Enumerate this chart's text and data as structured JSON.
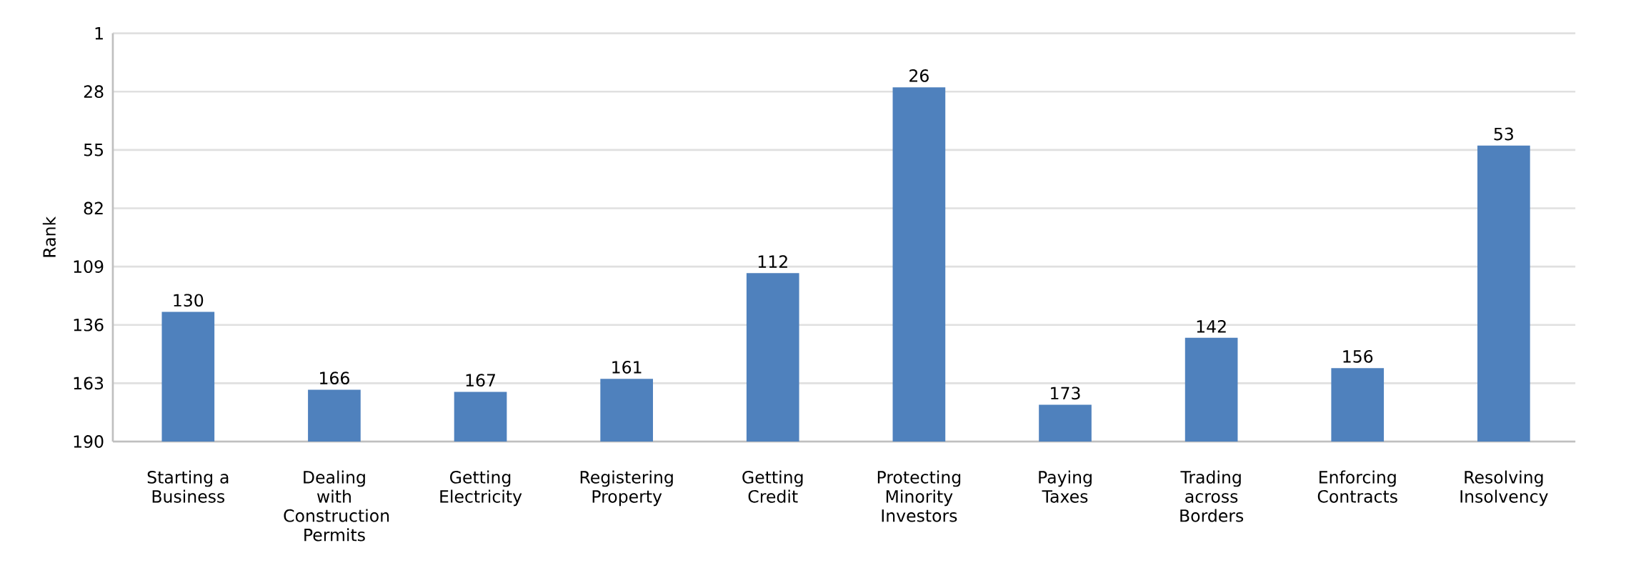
{
  "chart_data": {
    "type": "bar",
    "ylabel": "Rank",
    "categories": [
      "Starting a Business",
      "Dealing with Construction Permits",
      "Getting Electricity",
      "Registering Property",
      "Getting Credit",
      "Protecting Minority Investors",
      "Paying Taxes",
      "Trading across Borders",
      "Enforcing Contracts",
      "Resolving Insolvency"
    ],
    "base": [
      190,
      190,
      190,
      190,
      190,
      190,
      190,
      190,
      190,
      190
    ],
    "values": [
      -60,
      -24,
      -23,
      -29,
      -78,
      -164,
      -17,
      -48,
      -34,
      -137
    ],
    "value_labels": [
      "130",
      "166",
      "167",
      "161",
      "112",
      "26",
      "173",
      "142",
      "156",
      "53"
    ],
    "color": "#4f81bd",
    "ylim": [
      190,
      1
    ],
    "yticks": [
      1,
      28,
      55,
      82,
      109,
      136,
      163,
      190
    ],
    "grid": "y"
  }
}
